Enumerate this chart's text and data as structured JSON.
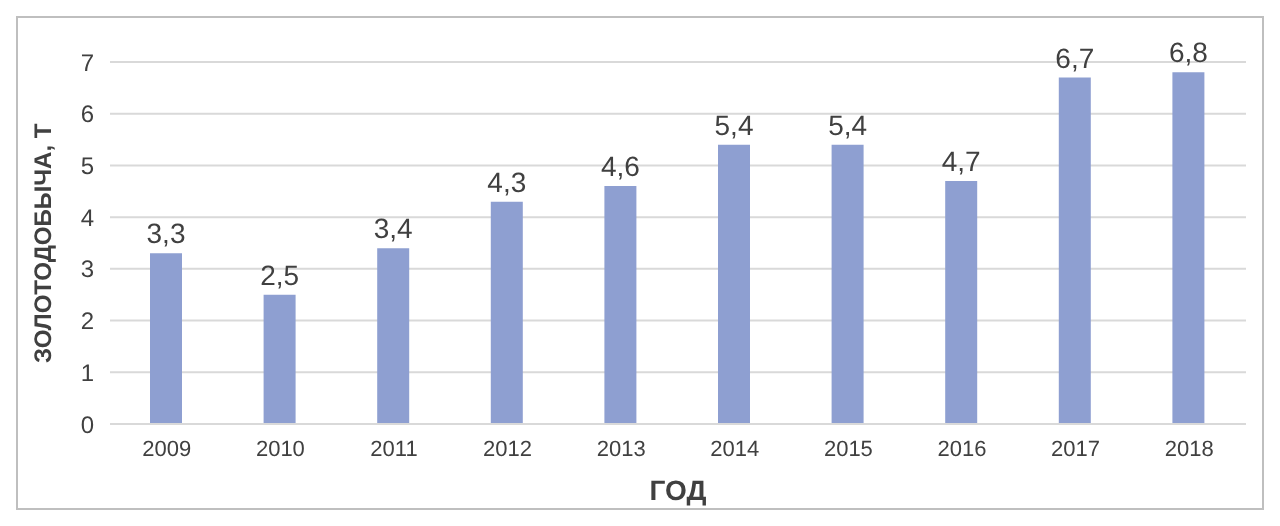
{
  "chart_data": {
    "type": "bar",
    "xlabel": "ГОД",
    "ylabel": "ЗОЛОТОДОБЫЧА, Т",
    "categories": [
      "2009",
      "2010",
      "2011",
      "2012",
      "2013",
      "2014",
      "2015",
      "2016",
      "2017",
      "2018"
    ],
    "values": [
      3.3,
      2.5,
      3.4,
      4.3,
      4.6,
      5.4,
      5.4,
      4.7,
      6.7,
      6.8
    ],
    "value_labels": [
      "3,3",
      "2,5",
      "3,4",
      "4,3",
      "4,6",
      "5,4",
      "5,4",
      "4,7",
      "6,7",
      "6,8"
    ],
    "color": "#8e9fd1",
    "ylim": [
      0,
      7
    ],
    "yticks": [
      0,
      1,
      2,
      3,
      4,
      5,
      6,
      7
    ],
    "grid": "y"
  }
}
